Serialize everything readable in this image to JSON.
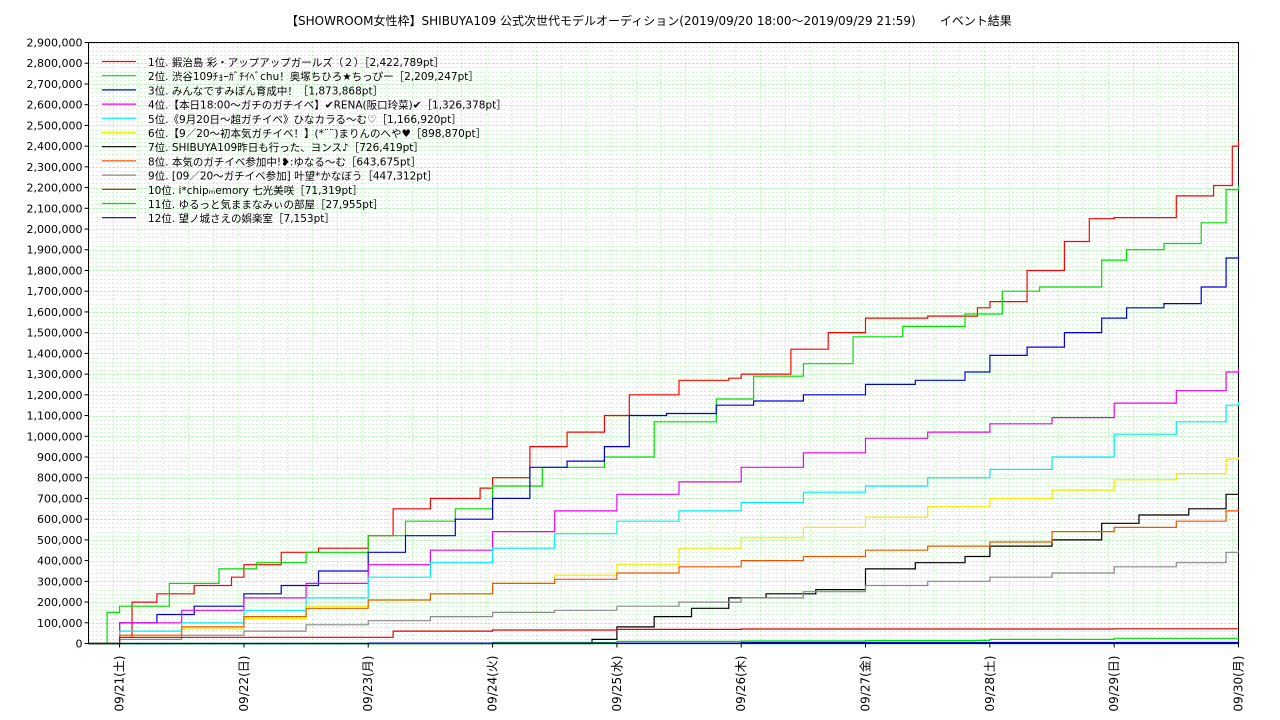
{
  "chart_data": {
    "type": "line",
    "title": "【SHOWROOM女性枠】SHIBUYA109 公式次世代モデルオーディション(2019/09/20 18:00～2019/09/29 21:59)　　イベント結果",
    "xlabel": "",
    "ylabel": "",
    "ylim": [
      0,
      2900000
    ],
    "y_ticks": [
      "0",
      "100,000",
      "200,000",
      "300,000",
      "400,000",
      "500,000",
      "600,000",
      "700,000",
      "800,000",
      "900,000",
      "1,000,000",
      "1,100,000",
      "1,200,000",
      "1,300,000",
      "1,400,000",
      "1,500,000",
      "1,600,000",
      "1,700,000",
      "1,800,000",
      "1,900,000",
      "2,000,000",
      "2,100,000",
      "2,200,000",
      "2,300,000",
      "2,400,000",
      "2,500,000",
      "2,600,000",
      "2,700,000",
      "2,800,000",
      "2,900,000"
    ],
    "x_ticks": [
      "09/21(土)",
      "09/22(日)",
      "09/23(月)",
      "09/24(火)",
      "09/25(水)",
      "09/26(木)",
      "09/27(金)",
      "09/28(土)",
      "09/29(日)",
      "09/30(月)"
    ],
    "xlim_days": [
      -0.25,
      9.0
    ],
    "grid": true,
    "legend_position": "top-left",
    "series": [
      {
        "name": "1位. 鍜治島 彩・アップアップガールズ（２）［2,422,789pt］",
        "color": "#ff0000",
        "x": [
          -0.25,
          0,
          0.1,
          0.3,
          0.6,
          0.9,
          1.0,
          1.3,
          1.6,
          2.0,
          2.2,
          2.5,
          2.9,
          3.0,
          3.3,
          3.6,
          3.9,
          4.1,
          4.5,
          4.9,
          5.0,
          5.4,
          5.7,
          6.0,
          6.5,
          6.9,
          7.0,
          7.3,
          7.6,
          7.8,
          8.0,
          8.5,
          8.8,
          8.95,
          9.0
        ],
        "y": [
          0,
          30000,
          200000,
          240000,
          280000,
          320000,
          380000,
          440000,
          460000,
          520000,
          650000,
          700000,
          750000,
          800000,
          950000,
          1020000,
          1100000,
          1200000,
          1270000,
          1280000,
          1300000,
          1420000,
          1500000,
          1570000,
          1580000,
          1620000,
          1650000,
          1800000,
          1940000,
          2050000,
          2055000,
          2160000,
          2210000,
          2400000,
          2422789
        ]
      },
      {
        "name": "2位. 渋谷109ﾁｮｰｶﾞﾁｲﾍﾞchu！奥塚ちひろ★ちっぴー［2,209,247pt］",
        "color": "#00dd00",
        "x": [
          -0.25,
          -0.1,
          0,
          0.4,
          0.8,
          1.1,
          1.5,
          2.0,
          2.3,
          2.7,
          3.0,
          3.4,
          3.9,
          4.3,
          4.8,
          5.1,
          5.5,
          5.9,
          6.3,
          6.8,
          7.1,
          7.4,
          7.9,
          8.1,
          8.4,
          8.7,
          8.9,
          9.0
        ],
        "y": [
          0,
          150000,
          180000,
          290000,
          360000,
          390000,
          440000,
          520000,
          590000,
          650000,
          760000,
          850000,
          900000,
          1070000,
          1180000,
          1290000,
          1350000,
          1480000,
          1530000,
          1590000,
          1700000,
          1720000,
          1850000,
          1900000,
          1930000,
          2030000,
          2190000,
          2209247
        ]
      },
      {
        "name": "3位. みんなですみぽん育成中！［1,873,868pt］",
        "color": "#0000dd",
        "x": [
          -0.25,
          0,
          0.3,
          0.6,
          1.0,
          1.3,
          1.6,
          2.0,
          2.3,
          2.7,
          3.0,
          3.3,
          3.6,
          3.9,
          4.1,
          4.4,
          4.8,
          5.1,
          5.5,
          6.0,
          6.4,
          6.8,
          7.0,
          7.3,
          7.6,
          7.9,
          8.1,
          8.4,
          8.7,
          8.9,
          9.0
        ],
        "y": [
          0,
          100000,
          140000,
          180000,
          240000,
          280000,
          350000,
          440000,
          520000,
          600000,
          700000,
          850000,
          880000,
          950000,
          1100000,
          1110000,
          1150000,
          1170000,
          1200000,
          1250000,
          1270000,
          1310000,
          1390000,
          1430000,
          1500000,
          1570000,
          1620000,
          1640000,
          1720000,
          1860000,
          1873868
        ]
      },
      {
        "name": "4位.【本日18:00～ガチのガチイベ】✔RENA(阪口玲菜)✔［1,326,378pt］",
        "color": "#ee00ee",
        "x": [
          -0.25,
          0,
          0.5,
          1.0,
          1.5,
          2.0,
          2.5,
          3.0,
          3.5,
          4.0,
          4.5,
          5.0,
          5.5,
          6.0,
          6.5,
          7.0,
          7.5,
          8.0,
          8.5,
          8.9,
          9.0
        ],
        "y": [
          0,
          100000,
          160000,
          220000,
          290000,
          380000,
          450000,
          540000,
          640000,
          720000,
          780000,
          850000,
          920000,
          990000,
          1020000,
          1060000,
          1090000,
          1160000,
          1220000,
          1310000,
          1326378
        ]
      },
      {
        "name": "5位.《9月20日～超ガチイベ》ひなカラる～む♡［1,166,920pt］",
        "color": "#00eeee",
        "x": [
          -0.25,
          0,
          0.5,
          1.0,
          1.5,
          2.0,
          2.5,
          3.0,
          3.5,
          4.0,
          4.5,
          5.0,
          5.5,
          6.0,
          6.5,
          7.0,
          7.5,
          8.0,
          8.5,
          8.9,
          9.0
        ],
        "y": [
          0,
          60000,
          100000,
          160000,
          220000,
          320000,
          390000,
          460000,
          530000,
          590000,
          640000,
          680000,
          730000,
          760000,
          800000,
          840000,
          900000,
          1010000,
          1070000,
          1150000,
          1166920
        ]
      },
      {
        "name": "6位.【9／20～初本気ガチイベ！】(*¨¨)まりんのへや♥［898,870pt］",
        "color": "#eeee00",
        "x": [
          -0.25,
          0,
          0.5,
          1.0,
          1.5,
          2.0,
          2.5,
          3.0,
          3.5,
          4.0,
          4.5,
          5.0,
          5.5,
          6.0,
          6.5,
          7.0,
          7.5,
          8.0,
          8.5,
          8.9,
          9.0
        ],
        "y": [
          0,
          30000,
          70000,
          120000,
          180000,
          210000,
          240000,
          290000,
          330000,
          380000,
          460000,
          510000,
          560000,
          610000,
          660000,
          700000,
          740000,
          790000,
          820000,
          890000,
          898870
        ]
      },
      {
        "name": "7位. SHIBUYA109昨日も行った、ヨンス♪［726,419pt］",
        "color": "#000000",
        "x": [
          -0.25,
          3.5,
          3.8,
          4.0,
          4.3,
          4.6,
          4.9,
          5.2,
          5.6,
          6.0,
          6.4,
          6.8,
          7.0,
          7.5,
          7.9,
          8.2,
          8.6,
          8.9,
          9.0
        ],
        "y": [
          0,
          0,
          20000,
          80000,
          130000,
          170000,
          220000,
          240000,
          260000,
          360000,
          390000,
          420000,
          470000,
          500000,
          580000,
          620000,
          650000,
          720000,
          726419
        ]
      },
      {
        "name": "8位. 本気のガチイベ参加中!❥:ゆなる～む［643,675pt］",
        "color": "#ee5500",
        "x": [
          -0.25,
          0,
          0.5,
          1.0,
          1.5,
          2.0,
          2.5,
          3.0,
          3.5,
          4.0,
          4.5,
          5.0,
          5.5,
          6.0,
          6.5,
          7.0,
          7.5,
          8.0,
          8.5,
          8.9,
          9.0
        ],
        "y": [
          0,
          40000,
          80000,
          130000,
          170000,
          210000,
          240000,
          290000,
          310000,
          340000,
          370000,
          400000,
          420000,
          450000,
          470000,
          490000,
          540000,
          560000,
          590000,
          640000,
          643675
        ]
      },
      {
        "name": "9位. [09／20～ガチイベ参加] 叶望*かなぼう［447,312pt］",
        "color": "#888888",
        "x": [
          -0.25,
          0,
          0.5,
          1.0,
          1.5,
          2.0,
          2.5,
          3.0,
          3.5,
          4.0,
          4.5,
          5.0,
          5.5,
          6.0,
          6.5,
          7.0,
          7.5,
          8.0,
          8.5,
          8.9,
          9.0
        ],
        "y": [
          0,
          20000,
          40000,
          60000,
          90000,
          110000,
          130000,
          150000,
          160000,
          180000,
          200000,
          220000,
          250000,
          280000,
          300000,
          320000,
          340000,
          370000,
          390000,
          440000,
          447312
        ]
      },
      {
        "name": "10位. i*chipₘemory 七光美咲［71,319pt］",
        "color": "#dd0000",
        "x": [
          -0.25,
          0,
          1.0,
          2.0,
          2.2,
          3.0,
          4.0,
          5.0,
          6.0,
          7.0,
          7.9,
          8.0,
          9.0
        ],
        "y": [
          0,
          30000,
          30000,
          30000,
          60000,
          65000,
          68000,
          70000,
          70000,
          70000,
          70000,
          71000,
          71319
        ]
      },
      {
        "name": "11位. ゆるっと気ままなみぃの部屋［27,955pt］",
        "color": "#00dd00",
        "x": [
          -0.25,
          2.0,
          3.0,
          4.0,
          5.0,
          6.0,
          6.9,
          7.0,
          8.0,
          9.0
        ],
        "y": [
          0,
          0,
          5000,
          10000,
          12000,
          14000,
          15000,
          20000,
          25000,
          27955
        ]
      },
      {
        "name": "12位. 望ノ城さえの娯楽室［7,153pt］",
        "color": "#0000dd",
        "x": [
          -0.25,
          2.0,
          5.0,
          9.0
        ],
        "y": [
          0,
          2000,
          5000,
          7153
        ]
      }
    ]
  }
}
